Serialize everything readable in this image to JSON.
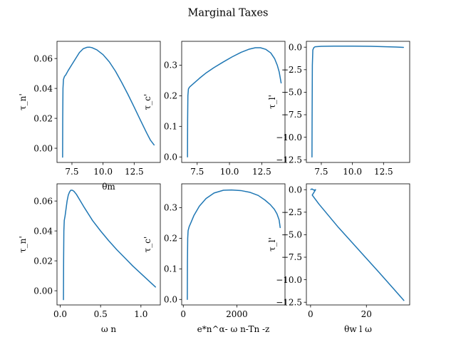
{
  "figure": {
    "title": "Marginal Taxes"
  },
  "colors": {
    "series": "#1f77b4"
  },
  "chart_data": [
    {
      "type": "line",
      "xlabel": "θm",
      "ylabel": "τ_n'",
      "xlim": [
        6.3,
        14.6
      ],
      "ylim": [
        -0.0095,
        0.0715
      ],
      "xticks": [
        7.5,
        10.0,
        12.5
      ],
      "xticklabels": [
        "7.5",
        "10.0",
        "12.5"
      ],
      "yticks": [
        0.0,
        0.02,
        0.04,
        0.06
      ],
      "yticklabels": [
        "0.00",
        "0.02",
        "0.04",
        "0.06"
      ],
      "series": [
        {
          "x": [
            6.75,
            6.76,
            6.78,
            6.82,
            6.9,
            7.0,
            7.2,
            7.5,
            7.8,
            8.1,
            8.4,
            8.7,
            8.9,
            9.1,
            9.5,
            10.0,
            10.5,
            11.0,
            11.5,
            12.0,
            12.5,
            13.0,
            13.5,
            13.8,
            14.1
          ],
          "y": [
            -0.006,
            0.02,
            0.04,
            0.046,
            0.048,
            0.049,
            0.052,
            0.056,
            0.06,
            0.064,
            0.0665,
            0.0675,
            0.0676,
            0.0673,
            0.0658,
            0.0626,
            0.0578,
            0.0515,
            0.044,
            0.036,
            0.0275,
            0.0188,
            0.0103,
            0.0055,
            0.0022
          ]
        }
      ]
    },
    {
      "type": "line",
      "xlabel": "",
      "ylabel": "τ_c'",
      "xlim": [
        6.3,
        14.3
      ],
      "ylim": [
        -0.018,
        0.378
      ],
      "xticks": [
        7.5,
        10.0,
        12.5
      ],
      "xticklabels": [
        "7.5",
        "10.0",
        "12.5"
      ],
      "yticks": [
        0.0,
        0.1,
        0.2,
        0.3
      ],
      "yticklabels": [
        "0.0",
        "0.1",
        "0.2",
        "0.3"
      ],
      "series": [
        {
          "x": [
            6.75,
            6.76,
            6.78,
            6.82,
            6.9,
            7.0,
            7.3,
            7.7,
            8.2,
            8.8,
            9.5,
            10.2,
            10.9,
            11.5,
            12.0,
            12.4,
            12.8,
            13.2,
            13.5,
            13.7,
            13.85,
            14.0
          ],
          "y": [
            0.0,
            0.12,
            0.2,
            0.222,
            0.228,
            0.232,
            0.243,
            0.258,
            0.275,
            0.292,
            0.31,
            0.327,
            0.342,
            0.352,
            0.357,
            0.357,
            0.352,
            0.34,
            0.321,
            0.3,
            0.278,
            0.242
          ]
        }
      ]
    },
    {
      "type": "line",
      "xlabel": "",
      "ylabel": "τ_l'",
      "xlim": [
        6.3,
        14.6
      ],
      "ylim": [
        -12.8,
        0.65
      ],
      "xticks": [
        7.5,
        10.0,
        12.5
      ],
      "xticklabels": [
        "7.5",
        "10.0",
        "12.5"
      ],
      "yticks": [
        -12.5,
        -10.0,
        -7.5,
        -5.0,
        -2.5,
        0.0
      ],
      "yticklabels": [
        "−12.5",
        "−10.0",
        "−7.5",
        "−5.0",
        "−2.5",
        "0.0"
      ],
      "series": [
        {
          "x": [
            6.75,
            6.76,
            6.78,
            6.82,
            6.9,
            7.0,
            7.5,
            8.5,
            10.0,
            11.5,
            12.5,
            13.5,
            14.1
          ],
          "y": [
            -12.2,
            -8.0,
            -2.0,
            -0.3,
            -0.05,
            0.05,
            0.1,
            0.12,
            0.12,
            0.1,
            0.06,
            0.02,
            -0.02
          ]
        }
      ]
    },
    {
      "type": "line",
      "xlabel": "ω n",
      "ylabel": "τ_n'",
      "xlim": [
        -0.04,
        1.24
      ],
      "ylim": [
        -0.0095,
        0.0715
      ],
      "xticks": [
        0.0,
        0.5,
        1.0
      ],
      "xticklabels": [
        "0.0",
        "0.5",
        "1.0"
      ],
      "yticks": [
        0.0,
        0.02,
        0.04,
        0.06
      ],
      "yticklabels": [
        "0.00",
        "0.02",
        "0.04",
        "0.06"
      ],
      "series": [
        {
          "x": [
            0.04,
            0.042,
            0.045,
            0.05,
            0.06,
            0.07,
            0.085,
            0.1,
            0.115,
            0.13,
            0.15,
            0.17,
            0.2,
            0.25,
            0.3,
            0.4,
            0.5,
            0.6,
            0.7,
            0.8,
            0.9,
            1.0,
            1.1,
            1.18
          ],
          "y": [
            -0.006,
            0.02,
            0.04,
            0.047,
            0.05,
            0.054,
            0.06,
            0.064,
            0.066,
            0.0672,
            0.0672,
            0.0665,
            0.0645,
            0.06,
            0.0555,
            0.047,
            0.04,
            0.0335,
            0.0275,
            0.022,
            0.0165,
            0.0115,
            0.0065,
            0.0025
          ]
        }
      ]
    },
    {
      "type": "line",
      "xlabel": "e*n^α- ω n-Tn -z",
      "ylabel": "τ_c'",
      "xlim": [
        -60,
        3800
      ],
      "ylim": [
        -0.018,
        0.378
      ],
      "xticks": [
        0,
        2000
      ],
      "xticklabels": [
        "0",
        "2000"
      ],
      "yticks": [
        0.0,
        0.1,
        0.2,
        0.3
      ],
      "yticklabels": [
        "0.0",
        "0.1",
        "0.2",
        "0.3"
      ],
      "series": [
        {
          "x": [
            150,
            155,
            165,
            180,
            220,
            280,
            400,
            600,
            850,
            1150,
            1500,
            1800,
            2150,
            2500,
            2800,
            3050,
            3250,
            3400,
            3500,
            3580,
            3620
          ],
          "y": [
            0.0,
            0.12,
            0.2,
            0.225,
            0.238,
            0.25,
            0.275,
            0.305,
            0.33,
            0.348,
            0.357,
            0.358,
            0.356,
            0.35,
            0.34,
            0.325,
            0.31,
            0.295,
            0.28,
            0.26,
            0.235
          ]
        }
      ]
    },
    {
      "type": "line",
      "xlabel": "θw l ω",
      "ylabel": "τ_l'",
      "xlim": [
        -1.5,
        35.5
      ],
      "ylim": [
        -12.8,
        0.65
      ],
      "xticks": [
        0,
        20
      ],
      "xticklabels": [
        "0",
        "20"
      ],
      "yticks": [
        -12.5,
        -10.0,
        -7.5,
        -5.0,
        -2.5,
        0.0
      ],
      "yticklabels": [
        "−12.5",
        "−10.0",
        "−7.5",
        "−5.0",
        "−2.5",
        "0.0"
      ],
      "series": [
        {
          "x": [
            0.1,
            0.5,
            1.2,
            1.8,
            0.6,
            3.0,
            10.0,
            17.0,
            24.0,
            30.0,
            33.4
          ],
          "y": [
            0.02,
            0.08,
            -0.05,
            0.0,
            -0.6,
            -1.6,
            -4.2,
            -6.6,
            -9.0,
            -11.1,
            -12.3
          ]
        }
      ]
    }
  ]
}
